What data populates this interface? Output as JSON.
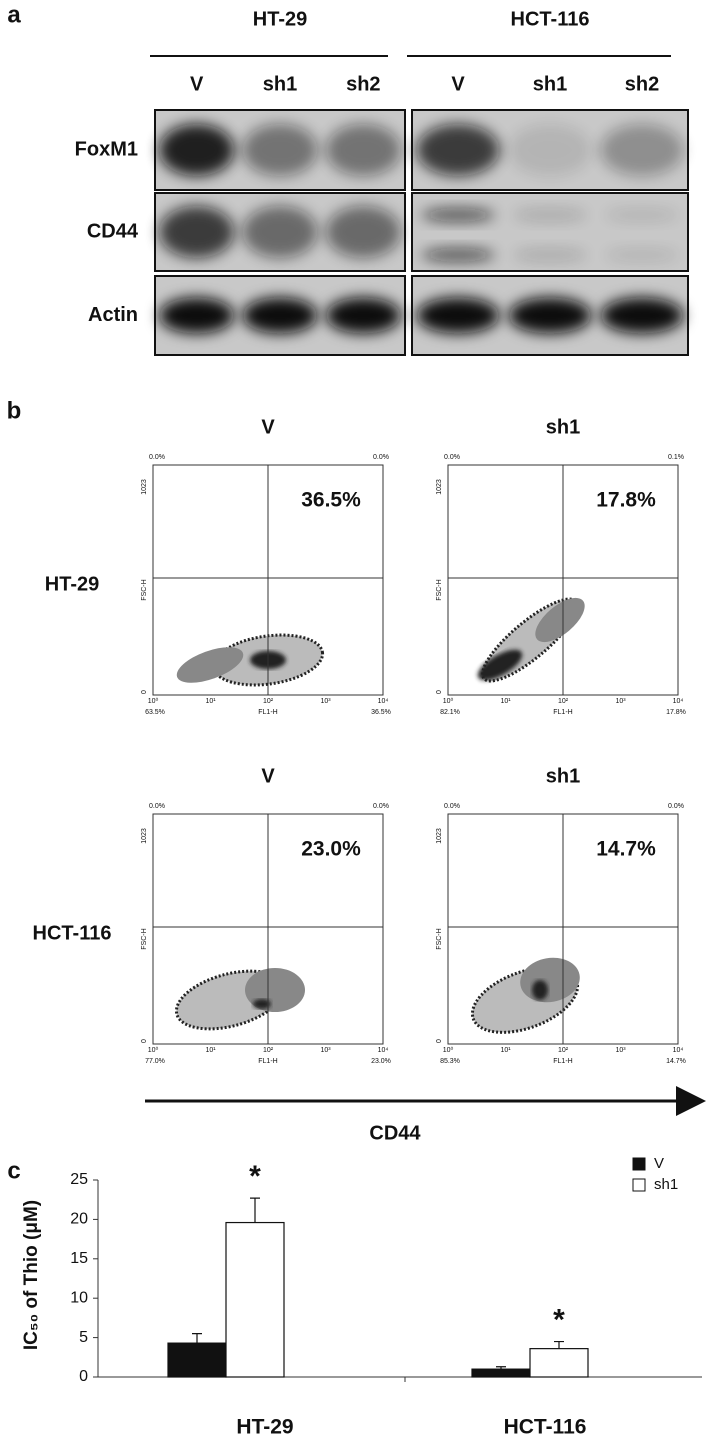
{
  "panel_a": {
    "label": "a",
    "cell_lines": [
      {
        "name": "HT-29",
        "lanes": [
          "V",
          "sh1",
          "sh2"
        ]
      },
      {
        "name": "HCT-116",
        "lanes": [
          "V",
          "sh1",
          "sh2"
        ]
      }
    ],
    "proteins": [
      "FoxM1",
      "CD44",
      "Actin"
    ]
  },
  "panel_b": {
    "label": "b",
    "rows": [
      {
        "name": "HT-29",
        "plots": [
          {
            "title": "V",
            "percent": "36.5%",
            "corners": [
              "0.0%",
              "0.0%",
              "63.5%",
              "36.5%"
            ]
          },
          {
            "title": "sh1",
            "percent": "17.8%",
            "corners": [
              "0.0%",
              "0.1%",
              "82.1%",
              "17.8%"
            ]
          }
        ]
      },
      {
        "name": "HCT-116",
        "plots": [
          {
            "title": "V",
            "percent": "23.0%",
            "corners": [
              "0.0%",
              "0.0%",
              "77.0%",
              "23.0%"
            ]
          },
          {
            "title": "sh1",
            "percent": "14.7%",
            "corners": [
              "0.0%",
              "0.0%",
              "85.3%",
              "14.7%"
            ]
          }
        ]
      }
    ],
    "y_axis": {
      "label": "FSC-H",
      "ticks": [
        "1023",
        "0"
      ]
    },
    "x_axis": {
      "label": "FL1-H",
      "ticks": [
        "10⁰",
        "10¹",
        "10²",
        "10³",
        "10⁴"
      ]
    },
    "marker": "CD44"
  },
  "chart_data": {
    "type": "bar",
    "label": "c",
    "y_label": "IC₅₀ of Thio (μM)",
    "categories": [
      "HT-29",
      "HCT-116"
    ],
    "series": [
      {
        "name": "V",
        "color": "#111111",
        "values": [
          4.3,
          1.0
        ],
        "errors": [
          1.2,
          0.3
        ]
      },
      {
        "name": "sh1",
        "color": "#ffffff",
        "values": [
          19.6,
          3.6
        ],
        "errors": [
          3.1,
          0.9
        ],
        "annotations": [
          "*",
          "*"
        ]
      }
    ],
    "ylim": [
      0,
      25
    ],
    "yticks": [
      0,
      5,
      10,
      15,
      20,
      25
    ],
    "legend": "upper right"
  }
}
